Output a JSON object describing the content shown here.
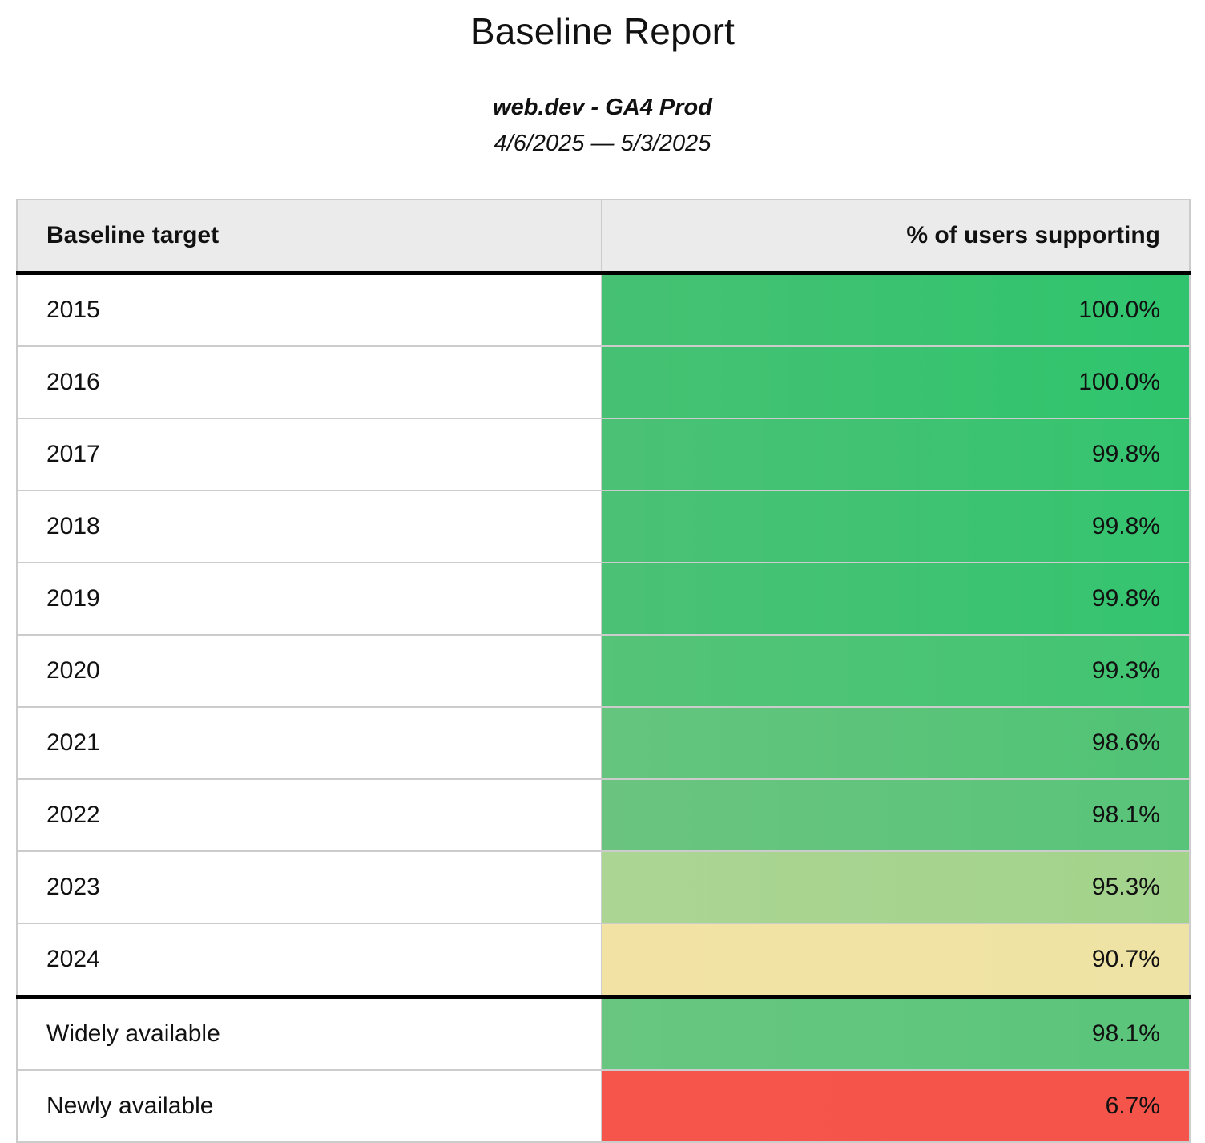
{
  "report": {
    "title": "Baseline Report",
    "subtitle": "web.dev - GA4 Prod",
    "date_range": "4/6/2025 — 5/3/2025"
  },
  "table": {
    "columns": [
      "Baseline target",
      "% of users supporting"
    ],
    "rows": [
      {
        "target": "2015",
        "value": "100.0%",
        "color_left": "#46c173",
        "color_right": "#2fc46d",
        "separator_above": false
      },
      {
        "target": "2016",
        "value": "100.0%",
        "color_left": "#46c173",
        "color_right": "#2fc46d",
        "separator_above": false
      },
      {
        "target": "2017",
        "value": "99.8%",
        "color_left": "#4bc175",
        "color_right": "#34c46f",
        "separator_above": false
      },
      {
        "target": "2018",
        "value": "99.8%",
        "color_left": "#4bc175",
        "color_right": "#34c46f",
        "separator_above": false
      },
      {
        "target": "2019",
        "value": "99.8%",
        "color_left": "#4bc175",
        "color_right": "#34c46f",
        "separator_above": false
      },
      {
        "target": "2020",
        "value": "99.3%",
        "color_left": "#55c378",
        "color_right": "#41c572",
        "separator_above": false
      },
      {
        "target": "2021",
        "value": "98.6%",
        "color_left": "#65c57e",
        "color_right": "#50c375",
        "separator_above": false
      },
      {
        "target": "2022",
        "value": "98.1%",
        "color_left": "#6ac47f",
        "color_right": "#58c47a",
        "separator_above": false
      },
      {
        "target": "2023",
        "value": "95.3%",
        "color_left": "#abd593",
        "color_right": "#a2d38b",
        "separator_above": false
      },
      {
        "target": "2024",
        "value": "90.7%",
        "color_left": "#f2e3a4",
        "color_right": "#eee3a4",
        "separator_above": false
      },
      {
        "target": "Widely available",
        "value": "98.1%",
        "color_left": "#68c680",
        "color_right": "#5ac57b",
        "separator_above": true
      },
      {
        "target": "Newly available",
        "value": "6.7%",
        "color_left": "#f5554b",
        "color_right": "#f5544a",
        "separator_above": false
      }
    ]
  },
  "colors": {
    "header_background": "#ebebeb",
    "row_border": "#cccccc",
    "separator": "#000000",
    "text": "#111111"
  },
  "chart_data": {
    "type": "table",
    "title": "Baseline Report",
    "subtitle": "web.dev - GA4 Prod",
    "date_range": "4/6/2025 — 5/3/2025",
    "columns": [
      "Baseline target",
      "% of users supporting"
    ],
    "categories": [
      "2015",
      "2016",
      "2017",
      "2018",
      "2019",
      "2020",
      "2021",
      "2022",
      "2023",
      "2024",
      "Widely available",
      "Newly available"
    ],
    "values": [
      100.0,
      100.0,
      99.8,
      99.8,
      99.8,
      99.3,
      98.6,
      98.1,
      95.3,
      90.7,
      98.1,
      6.7
    ],
    "value_format": "percent_one_decimal",
    "color_scale": {
      "low": "#f5544a",
      "mid": "#f2e3a4",
      "high": "#2fc46d"
    },
    "layout": "two-column table with conditional heatmap formatting on value column, thick rule above summary rows"
  }
}
